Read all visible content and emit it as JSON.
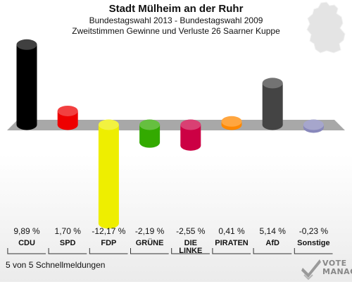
{
  "header": {
    "title": "Stadt Mülheim an der Ruhr",
    "subtitle1": "Bundestagswahl 2013 - Bundestagswahl 2009",
    "subtitle2": "Zweitstimmen Gewinne und Verluste 26 Saarner Kuppe"
  },
  "footer": {
    "text": "5 von 5 Schnellmeldungen"
  },
  "logo": {
    "line1": "VOTE",
    "line2": "MANAGER"
  },
  "icons": {
    "map": "germany-map-icon",
    "logo": "votemanager-logo-icon"
  },
  "chart_data": {
    "type": "bar",
    "title": "Stadt Mülheim an der Ruhr",
    "categories": [
      "CDU",
      "SPD",
      "FDP",
      "GRÜNE",
      "DIE LINKE",
      "PIRATEN",
      "AfD",
      "Sonstige"
    ],
    "category_labels": [
      [
        "CDU"
      ],
      [
        "SPD"
      ],
      [
        "FDP"
      ],
      [
        "GRÜNE"
      ],
      [
        "DIE",
        "LINKE"
      ],
      [
        "PIRATEN"
      ],
      [
        "AfD"
      ],
      [
        "Sonstige"
      ]
    ],
    "values": [
      9.89,
      1.7,
      -12.17,
      -2.19,
      -2.55,
      0.41,
      5.14,
      -0.23
    ],
    "value_labels": [
      "9,89 %",
      "1,70 %",
      "-12,17 %",
      "-2,19 %",
      "-2,55 %",
      "0,41 %",
      "5,14 %",
      "-0,23 %"
    ],
    "colors": [
      "#000000",
      "#ee0000",
      "#eeee00",
      "#33aa00",
      "#cc0044",
      "#ff8800",
      "#444444",
      "#8888bb"
    ],
    "ylim": [
      -12.17,
      9.89
    ]
  }
}
